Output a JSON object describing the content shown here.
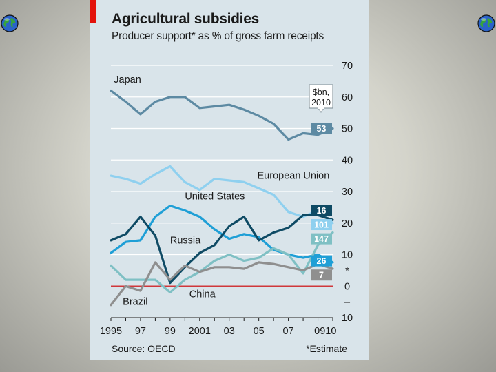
{
  "chart_data": {
    "type": "line",
    "title": "Agricultural subsidies",
    "subtitle": "Producer support* as % of gross farm receipts",
    "source": "Source: OECD",
    "note": "*Estimate",
    "ylim": [
      -10,
      70
    ],
    "yticks": [
      {
        "value": 70,
        "label": "70"
      },
      {
        "value": 60,
        "label": "60"
      },
      {
        "value": 50,
        "label": "50"
      },
      {
        "value": 40,
        "label": "40"
      },
      {
        "value": 30,
        "label": "30"
      },
      {
        "value": 20,
        "label": "20"
      },
      {
        "value": 10,
        "label": "10"
      },
      {
        "value": 5,
        "label": "*"
      },
      {
        "value": 0,
        "label": "0"
      },
      {
        "value": -5,
        "label": "–"
      },
      {
        "value": -10,
        "label": "10"
      }
    ],
    "xlim": [
      1995,
      2010
    ],
    "xticks": [
      {
        "value": 1995,
        "label": "1995"
      },
      {
        "value": 1997,
        "label": "97"
      },
      {
        "value": 1999,
        "label": "99"
      },
      {
        "value": 2001,
        "label": "2001"
      },
      {
        "value": 2003,
        "label": "03"
      },
      {
        "value": 2005,
        "label": "05"
      },
      {
        "value": 2007,
        "label": "07"
      },
      {
        "value": 2009.5,
        "label": "0910"
      }
    ],
    "x": [
      1995,
      1996,
      1997,
      1998,
      1999,
      2000,
      2001,
      2002,
      2003,
      2004,
      2005,
      2006,
      2007,
      2008,
      2009,
      2010
    ],
    "callout": {
      "line1": "$bn,",
      "line2": "2010"
    },
    "series": [
      {
        "name": "Japan",
        "color": "#5d8aa3",
        "label_year": 1995.2,
        "label_value": 64.5,
        "values": [
          62,
          58.5,
          54.5,
          58.5,
          60,
          60,
          56.5,
          57,
          57.5,
          56,
          54,
          51.5,
          46.5,
          48.5,
          48,
          50
        ],
        "end_value": "53",
        "box_y": 50
      },
      {
        "name": "European Union",
        "color": "#8fd0ef",
        "label_year": 2004.9,
        "label_value": 34,
        "values": [
          35,
          34,
          32.5,
          35.5,
          38,
          33,
          30.5,
          34,
          33.5,
          33,
          31,
          29,
          23.5,
          22,
          24,
          20
        ],
        "end_value": "101",
        "box_y": 19.5
      },
      {
        "name": "United States",
        "color": "#1f9fd6",
        "label_year": 2000,
        "label_value": 27.5,
        "values": [
          10.5,
          14,
          14.5,
          22,
          25.5,
          24,
          22,
          18,
          15,
          16.5,
          15.5,
          11.5,
          10,
          9,
          10,
          7.5
        ],
        "end_value": "26",
        "box_y": 8
      },
      {
        "name": "Russia",
        "color": "#0e4a64",
        "label_year": 1999,
        "label_value": 13.5,
        "values": [
          14.5,
          16.5,
          22,
          16,
          1,
          6,
          10.5,
          13,
          19,
          22,
          14.5,
          17,
          18.5,
          22.5,
          22.5,
          21
        ],
        "end_value": "16",
        "box_y": 24
      },
      {
        "name": "China",
        "color": "#7fc0c4",
        "label_year": 2000.3,
        "label_value": -3.5,
        "values": [
          6.5,
          2,
          2,
          2,
          -2,
          2,
          4.5,
          8,
          10,
          8,
          9,
          12,
          10,
          4,
          13,
          17
        ],
        "end_value": "147",
        "box_y": 15
      },
      {
        "name": "Brazil",
        "color": "#8f8f8f",
        "label_year": 1995.8,
        "label_value": -6,
        "values": [
          -6,
          0,
          -1.5,
          7.5,
          2,
          6.5,
          4.5,
          6,
          6,
          5.5,
          7.5,
          7,
          6,
          5,
          7,
          5.5
        ],
        "end_value": "7",
        "box_y": 3.5
      }
    ]
  }
}
